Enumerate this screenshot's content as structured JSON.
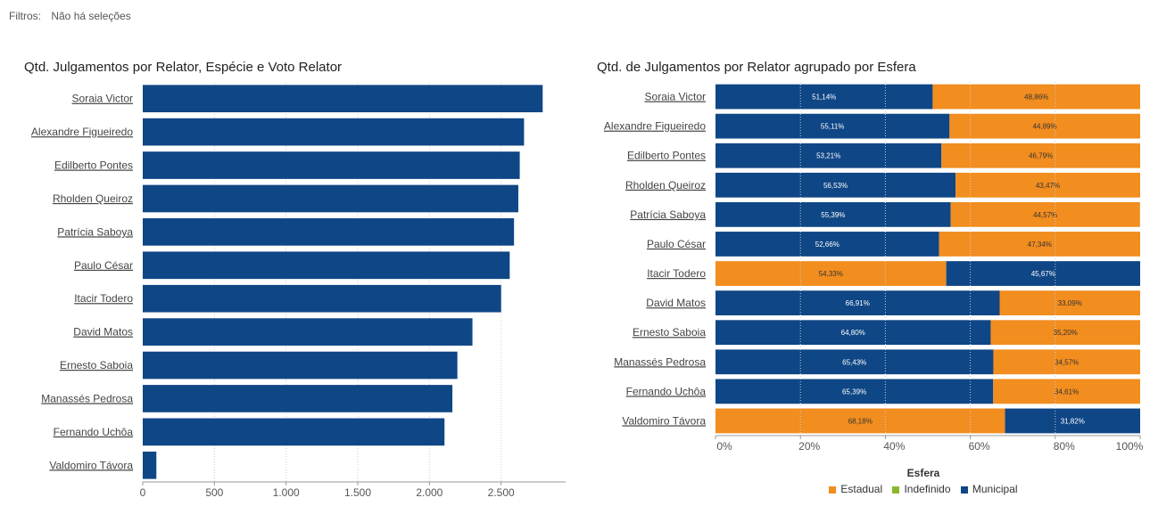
{
  "filters": {
    "label": "Filtros:",
    "value": "Não há seleções"
  },
  "colors": {
    "municipal": "#0f4686",
    "estadual": "#f28d1f",
    "indefinido": "#8ab82c"
  },
  "chart_data": [
    {
      "type": "bar",
      "orientation": "horizontal",
      "title": "Qtd. Julgamentos por Relator, Espécie e Voto Relator",
      "categories": [
        "Soraia Victor",
        "Alexandre Figueiredo",
        "Edilberto Pontes",
        "Rholden Queiroz",
        "Patrícia Saboya",
        "Paulo César",
        "Itacir Todero",
        "David Matos",
        "Ernesto Saboia",
        "Manassés Pedrosa",
        "Fernando Uchôa",
        "Valdomiro Távora"
      ],
      "values": [
        2790,
        2660,
        2630,
        2620,
        2590,
        2560,
        2500,
        2300,
        2195,
        2160,
        2105,
        95
      ],
      "xlim": [
        0,
        2950
      ],
      "xticks": [
        0,
        500,
        1000,
        1500,
        2000,
        2500
      ],
      "xtick_labels": [
        "0",
        "500",
        "1.000",
        "1.500",
        "2.000",
        "2.500"
      ],
      "xlabel": "",
      "ylabel": ""
    },
    {
      "type": "bar",
      "orientation": "horizontal",
      "stacked": "percent",
      "title": "Qtd. de Julgamentos por Relator agrupado por Esfera",
      "categories": [
        "Soraia Victor",
        "Alexandre Figueiredo",
        "Edilberto Pontes",
        "Rholden Queiroz",
        "Patrícia Saboya",
        "Paulo César",
        "Itacir Todero",
        "David Matos",
        "Ernesto Saboia",
        "Manassés Pedrosa",
        "Fernando Uchôa",
        "Valdomiro Távora"
      ],
      "segments": [
        [
          {
            "esfera": "Municipal",
            "value": 51.14,
            "label": "51,14%"
          },
          {
            "esfera": "Estadual",
            "value": 48.86,
            "label": "48,86%"
          }
        ],
        [
          {
            "esfera": "Municipal",
            "value": 55.11,
            "label": "55,11%"
          },
          {
            "esfera": "Estadual",
            "value": 44.89,
            "label": "44,89%"
          }
        ],
        [
          {
            "esfera": "Municipal",
            "value": 53.21,
            "label": "53,21%"
          },
          {
            "esfera": "Estadual",
            "value": 46.79,
            "label": "46,79%"
          }
        ],
        [
          {
            "esfera": "Municipal",
            "value": 56.53,
            "label": "56,53%"
          },
          {
            "esfera": "Estadual",
            "value": 43.47,
            "label": "43,47%"
          }
        ],
        [
          {
            "esfera": "Municipal",
            "value": 55.39,
            "label": "55,39%"
          },
          {
            "esfera": "Estadual",
            "value": 44.57,
            "label": "44,57%"
          }
        ],
        [
          {
            "esfera": "Municipal",
            "value": 52.66,
            "label": "52,66%"
          },
          {
            "esfera": "Estadual",
            "value": 47.34,
            "label": "47,34%"
          }
        ],
        [
          {
            "esfera": "Estadual",
            "value": 54.33,
            "label": "54,33%"
          },
          {
            "esfera": "Municipal",
            "value": 45.67,
            "label": "45,67%"
          }
        ],
        [
          {
            "esfera": "Municipal",
            "value": 66.91,
            "label": "66,91%"
          },
          {
            "esfera": "Estadual",
            "value": 33.09,
            "label": "33,09%"
          }
        ],
        [
          {
            "esfera": "Municipal",
            "value": 64.8,
            "label": "64,80%"
          },
          {
            "esfera": "Estadual",
            "value": 35.2,
            "label": "35,20%"
          }
        ],
        [
          {
            "esfera": "Municipal",
            "value": 65.43,
            "label": "65,43%"
          },
          {
            "esfera": "Estadual",
            "value": 34.57,
            "label": "34,57%"
          }
        ],
        [
          {
            "esfera": "Municipal",
            "value": 65.39,
            "label": "65,39%"
          },
          {
            "esfera": "Estadual",
            "value": 34.61,
            "label": "34,61%"
          }
        ],
        [
          {
            "esfera": "Estadual",
            "value": 68.18,
            "label": "68,18%"
          },
          {
            "esfera": "Municipal",
            "value": 31.82,
            "label": "31,82%"
          }
        ]
      ],
      "xlim": [
        0,
        100
      ],
      "xticks": [
        0,
        20,
        40,
        60,
        80,
        100
      ],
      "xtick_labels": [
        "0%",
        "20%",
        "40%",
        "60%",
        "80%",
        "100%"
      ],
      "legend": {
        "title": "Esfera",
        "position": "bottom",
        "items": [
          {
            "name": "Estadual",
            "color": "#f28d1f"
          },
          {
            "name": "Indefinido",
            "color": "#8ab82c"
          },
          {
            "name": "Municipal",
            "color": "#0f4686"
          }
        ]
      }
    }
  ]
}
